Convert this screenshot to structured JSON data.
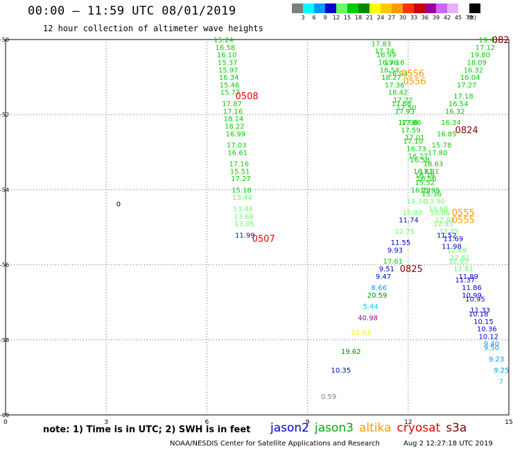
{
  "header": {
    "title": "00:00 – 11:59 UTC 08/01/2019",
    "subtitle": "12 hour collection of altimeter wave heights"
  },
  "legend": {
    "unit": "(ft)",
    "bins": [
      {
        "label": "3",
        "color": "#7f7f7f"
      },
      {
        "label": "6",
        "color": "#00ffff"
      },
      {
        "label": "9",
        "color": "#0099ff"
      },
      {
        "label": "12",
        "color": "#0000cc"
      },
      {
        "label": "15",
        "color": "#66ff66"
      },
      {
        "label": "18",
        "color": "#00cc00"
      },
      {
        "label": "21",
        "color": "#008800"
      },
      {
        "label": "24",
        "color": "#ffff00"
      },
      {
        "label": "27",
        "color": "#ffcc00"
      },
      {
        "label": "30",
        "color": "#ff9900"
      },
      {
        "label": "33",
        "color": "#ff3300"
      },
      {
        "label": "36",
        "color": "#cc0000"
      },
      {
        "label": "39",
        "color": "#990099"
      },
      {
        "label": "42",
        "color": "#cc66ff"
      },
      {
        "label": "45",
        "color": "#e8b0ff"
      },
      {
        "label": "70",
        "color": "#ffffff"
      },
      {
        "label": "",
        "color": "#000000"
      }
    ]
  },
  "map": {
    "lon_range": [
      0,
      15
    ],
    "lat_range": [
      -60,
      -50
    ],
    "x_ticks": [
      "0",
      "3",
      "6",
      "9",
      "12",
      "15"
    ],
    "y_ticks": [
      "-50",
      "-52",
      "-54",
      "-56",
      "-58",
      "-60"
    ],
    "contour_label": "0",
    "tracks": [
      {
        "id": "track_0507",
        "time_label": "0507",
        "label_color": "#e00000",
        "points": [
          {
            "lon": 6.2,
            "lat": -50.0,
            "v": "15.24",
            "c": "#00cc00"
          },
          {
            "lon": 6.25,
            "lat": -50.2,
            "v": "16.58",
            "c": "#00cc00"
          },
          {
            "lon": 6.3,
            "lat": -50.4,
            "v": "16.10",
            "c": "#00cc00"
          },
          {
            "lon": 6.32,
            "lat": -50.6,
            "v": "15.37",
            "c": "#00cc00"
          },
          {
            "lon": 6.34,
            "lat": -50.8,
            "v": "15.97",
            "c": "#00cc00"
          },
          {
            "lon": 6.36,
            "lat": -51.0,
            "v": "16.34",
            "c": "#00cc00"
          },
          {
            "lon": 6.38,
            "lat": -51.2,
            "v": "15.46",
            "c": "#00cc00"
          },
          {
            "lon": 6.4,
            "lat": -51.4,
            "v": "15.77",
            "c": "#00cc00"
          },
          {
            "lon": 6.45,
            "lat": -51.7,
            "v": "17.87",
            "c": "#00cc00"
          },
          {
            "lon": 6.48,
            "lat": -51.9,
            "v": "17.16",
            "c": "#00cc00"
          },
          {
            "lon": 6.5,
            "lat": -52.1,
            "v": "18.14",
            "c": "#00cc00"
          },
          {
            "lon": 6.53,
            "lat": -52.3,
            "v": "18.22",
            "c": "#00cc00"
          },
          {
            "lon": 6.56,
            "lat": -52.5,
            "v": "16.99",
            "c": "#00cc00"
          },
          {
            "lon": 6.59,
            "lat": -52.8,
            "v": "17.03",
            "c": "#00cc00"
          },
          {
            "lon": 6.62,
            "lat": -53.0,
            "v": "16.61",
            "c": "#00cc00"
          },
          {
            "lon": 6.66,
            "lat": -53.3,
            "v": "17.16",
            "c": "#00cc00"
          },
          {
            "lon": 6.69,
            "lat": -53.5,
            "v": "15.51",
            "c": "#00cc00"
          },
          {
            "lon": 6.72,
            "lat": -53.7,
            "v": "17.27",
            "c": "#00cc00"
          },
          {
            "lon": 6.74,
            "lat": -54.0,
            "v": "15.18",
            "c": "#00cc00"
          },
          {
            "lon": 6.76,
            "lat": -54.2,
            "v": "13.44",
            "c": "#66ff66"
          },
          {
            "lon": 6.78,
            "lat": -54.5,
            "v": "13.44",
            "c": "#66ff66"
          },
          {
            "lon": 6.8,
            "lat": -54.7,
            "v": "13.68",
            "c": "#66ff66"
          },
          {
            "lon": 6.82,
            "lat": -54.9,
            "v": "13.05",
            "c": "#66ff66"
          },
          {
            "lon": 6.84,
            "lat": -55.2,
            "v": "11.99",
            "c": "#0000cc"
          }
        ]
      },
      {
        "id": "track_0825",
        "time_label": "0825",
        "label_color": "#8b0000",
        "points": [
          {
            "lon": 14.1,
            "lat": -50.0,
            "v": "19.41",
            "c": "#00cc00"
          },
          {
            "lon": 14.0,
            "lat": -50.2,
            "v": "17.12",
            "c": "#00cc00"
          },
          {
            "lon": 13.85,
            "lat": -50.4,
            "v": "19.80",
            "c": "#00cc00"
          },
          {
            "lon": 13.75,
            "lat": -50.6,
            "v": "18.09",
            "c": "#00cc00"
          },
          {
            "lon": 13.65,
            "lat": -50.8,
            "v": "16.32",
            "c": "#00cc00"
          },
          {
            "lon": 13.55,
            "lat": -51.0,
            "v": "16.04",
            "c": "#00cc00"
          },
          {
            "lon": 13.45,
            "lat": -51.2,
            "v": "17.27",
            "c": "#00cc00"
          },
          {
            "lon": 13.35,
            "lat": -51.5,
            "v": "17.18",
            "c": "#00cc00"
          },
          {
            "lon": 13.2,
            "lat": -51.7,
            "v": "16.54",
            "c": "#00cc00"
          },
          {
            "lon": 13.1,
            "lat": -51.9,
            "v": "16.32",
            "c": "#00cc00"
          },
          {
            "lon": 12.98,
            "lat": -52.2,
            "v": "16.34",
            "c": "#00cc00"
          },
          {
            "lon": 12.85,
            "lat": -52.5,
            "v": "16.85",
            "c": "#00cc00"
          },
          {
            "lon": 12.7,
            "lat": -52.8,
            "v": "15.78",
            "c": "#00cc00"
          },
          {
            "lon": 12.58,
            "lat": -53.0,
            "v": "17.80",
            "c": "#00cc00"
          },
          {
            "lon": 12.45,
            "lat": -53.3,
            "v": "18.63",
            "c": "#00cc00"
          },
          {
            "lon": 12.33,
            "lat": -53.5,
            "v": "17.81",
            "c": "#00cc00"
          },
          {
            "lon": 12.2,
            "lat": -53.8,
            "v": "15.52",
            "c": "#00cc00"
          },
          {
            "lon": 12.08,
            "lat": -54.0,
            "v": "16.13",
            "c": "#00cc00"
          },
          {
            "lon": 11.95,
            "lat": -54.3,
            "v": "14.34",
            "c": "#66ff66"
          },
          {
            "lon": 11.83,
            "lat": -54.6,
            "v": "12.83",
            "c": "#66ff66"
          },
          {
            "lon": 11.72,
            "lat": -54.8,
            "v": "11.74",
            "c": "#0000cc"
          },
          {
            "lon": 11.6,
            "lat": -55.1,
            "v": "12.75",
            "c": "#66ff66"
          },
          {
            "lon": 11.48,
            "lat": -55.4,
            "v": "11.55",
            "c": "#0000cc"
          },
          {
            "lon": 11.38,
            "lat": -55.6,
            "v": "9.93",
            "c": "#0000cc"
          },
          {
            "lon": 11.25,
            "lat": -55.9,
            "v": "17.61",
            "c": "#00cc00"
          },
          {
            "lon": 11.13,
            "lat": -56.1,
            "v": "9.51",
            "c": "#0000cc"
          },
          {
            "lon": 11.03,
            "lat": -56.3,
            "v": "9.47",
            "c": "#0000cc"
          },
          {
            "lon": 10.9,
            "lat": -56.6,
            "v": "8.66",
            "c": "#0099ff"
          },
          {
            "lon": 10.78,
            "lat": -56.8,
            "v": "20.59",
            "c": "#008800"
          },
          {
            "lon": 10.65,
            "lat": -57.1,
            "v": "5.44",
            "c": "#00ccff"
          },
          {
            "lon": 10.5,
            "lat": -57.4,
            "v": "40.98",
            "c": "#990099"
          },
          {
            "lon": 10.3,
            "lat": -57.8,
            "v": "21.62",
            "c": "#ffee00"
          },
          {
            "lon": 10.0,
            "lat": -58.3,
            "v": "19.62",
            "c": "#008800"
          },
          {
            "lon": 9.7,
            "lat": -58.8,
            "v": "10.35",
            "c": "#0000cc"
          },
          {
            "lon": 9.4,
            "lat": -59.5,
            "v": "0.59",
            "c": "#7f7f7f"
          }
        ]
      },
      {
        "id": "track_0556",
        "time_label": "0556",
        "label_color": "#ff9900",
        "points": [
          {
            "lon": 10.9,
            "lat": -50.1,
            "v": "17.83",
            "c": "#00cc00"
          },
          {
            "lon": 11.0,
            "lat": -50.3,
            "v": "17.74",
            "c": "#00cc00"
          },
          {
            "lon": 11.05,
            "lat": -50.4,
            "v": "16.99",
            "c": "#00cc00"
          },
          {
            "lon": 11.1,
            "lat": -50.6,
            "v": "16.96",
            "c": "#00cc00"
          },
          {
            "lon": 11.15,
            "lat": -50.8,
            "v": "18.54",
            "c": "#00cc00"
          },
          {
            "lon": 11.2,
            "lat": -51.0,
            "v": "18.27",
            "c": "#00cc00"
          },
          {
            "lon": 11.3,
            "lat": -51.2,
            "v": "17.36",
            "c": "#00cc00"
          },
          {
            "lon": 11.4,
            "lat": -51.4,
            "v": "18.42",
            "c": "#00cc00"
          },
          {
            "lon": 11.5,
            "lat": -51.7,
            "v": "17.66",
            "c": "#00cc00"
          },
          {
            "lon": 11.6,
            "lat": -51.9,
            "v": "17.93",
            "c": "#00cc00"
          },
          {
            "lon": 11.7,
            "lat": -52.2,
            "v": "17.08",
            "c": "#00cc00"
          },
          {
            "lon": 11.78,
            "lat": -52.4,
            "v": "17.59",
            "c": "#00cc00"
          },
          {
            "lon": 11.85,
            "lat": -52.7,
            "v": "17.10",
            "c": "#00cc00"
          },
          {
            "lon": 11.95,
            "lat": -52.9,
            "v": "16.73",
            "c": "#00cc00"
          },
          {
            "lon": 12.05,
            "lat": -53.2,
            "v": "16.58",
            "c": "#00cc00"
          },
          {
            "lon": 12.15,
            "lat": -53.5,
            "v": "16.81",
            "c": "#00cc00"
          },
          {
            "lon": 12.25,
            "lat": -53.7,
            "v": "16.56",
            "c": "#00cc00"
          },
          {
            "lon": 12.35,
            "lat": -54.0,
            "v": "15.99",
            "c": "#00cc00"
          },
          {
            "lon": 12.5,
            "lat": -54.3,
            "v": "13.90",
            "c": "#66ff66"
          },
          {
            "lon": 12.65,
            "lat": -54.6,
            "v": "13.86",
            "c": "#66ff66"
          },
          {
            "lon": 12.8,
            "lat": -54.8,
            "v": "12.99",
            "c": "#66ff66"
          },
          {
            "lon": 12.92,
            "lat": -55.1,
            "v": "12.75",
            "c": "#66ff66"
          },
          {
            "lon": 13.05,
            "lat": -55.3,
            "v": "11.69",
            "c": "#0000cc"
          },
          {
            "lon": 13.15,
            "lat": -55.6,
            "v": "12.68",
            "c": "#66ff66"
          },
          {
            "lon": 13.25,
            "lat": -55.8,
            "v": "12.61",
            "c": "#66ff66"
          },
          {
            "lon": 13.35,
            "lat": -56.1,
            "v": "12.81",
            "c": "#66ff66"
          },
          {
            "lon": 13.5,
            "lat": -56.3,
            "v": "11.89",
            "c": "#0000cc"
          },
          {
            "lon": 13.6,
            "lat": -56.6,
            "v": "11.86",
            "c": "#0000cc"
          },
          {
            "lon": 13.7,
            "lat": -56.9,
            "v": "10.95",
            "c": "#0000cc"
          },
          {
            "lon": 13.85,
            "lat": -57.2,
            "v": "11.33",
            "c": "#0000cc"
          },
          {
            "lon": 13.95,
            "lat": -57.5,
            "v": "10.15",
            "c": "#0000cc"
          },
          {
            "lon": 14.1,
            "lat": -57.9,
            "v": "10.12",
            "c": "#0000cc"
          },
          {
            "lon": 14.25,
            "lat": -58.2,
            "v": "9.50",
            "c": "#0099ff"
          },
          {
            "lon": 14.4,
            "lat": -58.5,
            "v": "9.23",
            "c": "#0099ff"
          },
          {
            "lon": 14.55,
            "lat": -58.8,
            "v": "9.25",
            "c": "#0099ff"
          },
          {
            "lon": 14.7,
            "lat": -59.1,
            "v": "7",
            "c": "#00ccff"
          }
        ]
      },
      {
        "id": "track_0824",
        "time_label": "0824",
        "label_color": "#8b0000",
        "points": [
          {
            "lon": 11.3,
            "lat": -50.6,
            "v": "17.16",
            "c": "#00cc00"
          },
          {
            "lon": 11.4,
            "lat": -50.9,
            "v": "16.94",
            "c": "#00cc00"
          },
          {
            "lon": 11.55,
            "lat": -51.6,
            "v": "17.22",
            "c": "#00cc00"
          },
          {
            "lon": 11.65,
            "lat": -51.8,
            "v": "17.50",
            "c": "#00cc00"
          },
          {
            "lon": 11.8,
            "lat": -52.2,
            "v": "17.86",
            "c": "#00cc00"
          },
          {
            "lon": 11.9,
            "lat": -52.6,
            "v": "17.01",
            "c": "#00cc00"
          },
          {
            "lon": 12.0,
            "lat": -53.1,
            "v": "16.27",
            "c": "#00cc00"
          },
          {
            "lon": 12.2,
            "lat": -53.6,
            "v": "16.79",
            "c": "#00cc00"
          },
          {
            "lon": 12.4,
            "lat": -54.1,
            "v": "15.36",
            "c": "#00cc00"
          }
        ]
      },
      {
        "id": "track_0555",
        "time_label": "0555",
        "label_color": "#ff9900",
        "points": [
          {
            "lon": 12.6,
            "lat": -54.5,
            "v": "13.68",
            "c": "#66ff66"
          },
          {
            "lon": 12.75,
            "lat": -54.9,
            "v": "12.93",
            "c": "#66ff66"
          },
          {
            "lon": 12.85,
            "lat": -55.2,
            "v": "11.52",
            "c": "#0000cc"
          },
          {
            "lon": 13.0,
            "lat": -55.5,
            "v": "11.98",
            "c": "#0000cc"
          },
          {
            "lon": 13.2,
            "lat": -55.9,
            "v": "12.93",
            "c": "#66ff66"
          },
          {
            "lon": 13.4,
            "lat": -56.4,
            "v": "11.37",
            "c": "#0000cc"
          },
          {
            "lon": 13.6,
            "lat": -56.8,
            "v": "10.99",
            "c": "#0000cc"
          },
          {
            "lon": 13.8,
            "lat": -57.3,
            "v": "10.18",
            "c": "#0000cc"
          },
          {
            "lon": 14.05,
            "lat": -57.7,
            "v": "10.36",
            "c": "#0000cc"
          },
          {
            "lon": 14.25,
            "lat": -58.1,
            "v": "9.40",
            "c": "#0099ff"
          }
        ]
      },
      {
        "id": "track_0508",
        "time_label": "0508",
        "label_color": "#e00000",
        "points": []
      },
      {
        "id": "track_0825_tail",
        "time_label": "082",
        "label_color": "#8b0000",
        "points": []
      }
    ],
    "time_labels": [
      {
        "text": "0508",
        "lon": 6.85,
        "lat": -51.5,
        "color": "#e00000"
      },
      {
        "text": "0507",
        "lon": 7.35,
        "lat": -55.3,
        "color": "#e00000"
      },
      {
        "text": "0556",
        "lon": 11.8,
        "lat": -50.9,
        "color": "#ff9900"
      },
      {
        "text": "0556",
        "lon": 11.85,
        "lat": -51.1,
        "color": "#ff9900"
      },
      {
        "text": "0824",
        "lon": 13.4,
        "lat": -52.4,
        "color": "#8b0000"
      },
      {
        "text": "0555",
        "lon": 13.3,
        "lat": -54.6,
        "color": "#ff9900"
      },
      {
        "text": "0555",
        "lon": 13.3,
        "lat": -54.8,
        "color": "#ff9900"
      },
      {
        "text": "0825",
        "lon": 11.75,
        "lat": -56.1,
        "color": "#8b0000"
      },
      {
        "text": "082",
        "lon": 14.5,
        "lat": -50.0,
        "color": "#8b0000"
      }
    ]
  },
  "footer": {
    "note": "note:  1) Time is in UTC;  2) SWH is in feet",
    "missions": [
      {
        "name": "jason2",
        "color": "#0000cc"
      },
      {
        "name": "jason3",
        "color": "#00aa00"
      },
      {
        "name": "altika",
        "color": "#ff9900"
      },
      {
        "name": "cryosat",
        "color": "#e00000"
      },
      {
        "name": "s3a",
        "color": "#8b0000"
      }
    ],
    "credit": "NOAA/NESDIS Center for Satellite Applications and Research",
    "date": "Aug  2 12:27:18 UTC 2019"
  }
}
